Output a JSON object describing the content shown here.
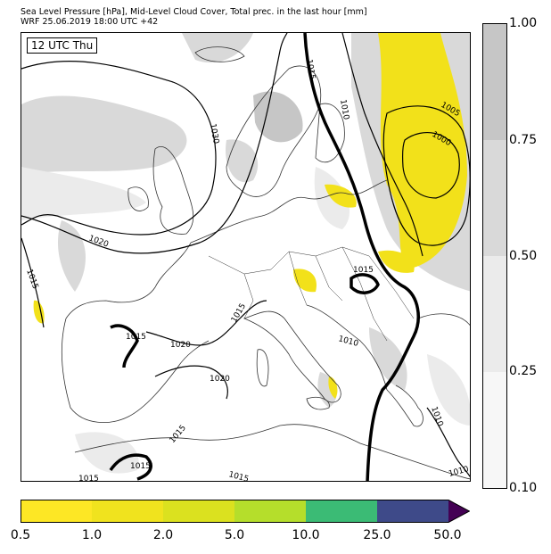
{
  "title": {
    "line1": "Sea Level Pressure [hPa], Mid-Level Cloud Cover, Total prec. in the last hour [mm]",
    "line2": "WRF 25.06.2019 18:00 UTC +42"
  },
  "time_badge": "12 UTC Thu",
  "colors": {
    "sea": "#ffffff",
    "coast": "#333333",
    "isobar": "#000000",
    "cloud_025": "#ebebeb",
    "cloud_050": "#d9d9d9",
    "cloud_075": "#c6c6c6",
    "precip_yellow": "#f2e11a"
  },
  "cloud_cover_legend": {
    "labels": [
      "1.00",
      "0.75",
      "0.50",
      "0.25",
      "0.10"
    ],
    "colors": [
      "#c6c6c6",
      "#d9d9d9",
      "#ebebeb",
      "#f7f7f7"
    ]
  },
  "precip_legend": {
    "labels": [
      "0.5",
      "1.0",
      "2.0",
      "5.0",
      "10.0",
      "25.0",
      "50.0"
    ],
    "colors": [
      "#fde725",
      "#f0e31e",
      "#dbe11f",
      "#b5de2b",
      "#3bbb75",
      "#2a9f87",
      "#3e4a89"
    ],
    "extend_color": "#440154"
  },
  "isobar_labels": [
    {
      "text": "1030"
    },
    {
      "text": "1020"
    },
    {
      "text": "1015"
    },
    {
      "text": "1015"
    },
    {
      "text": "1010"
    },
    {
      "text": "1005"
    },
    {
      "text": "1000"
    },
    {
      "text": "1015"
    },
    {
      "text": "1015"
    },
    {
      "text": "1020"
    },
    {
      "text": "1020"
    },
    {
      "text": "1015"
    },
    {
      "text": "1015"
    },
    {
      "text": "1015"
    },
    {
      "text": "1015"
    },
    {
      "text": "1010"
    },
    {
      "text": "1010"
    },
    {
      "text": "1010"
    },
    {
      "text": "1015"
    }
  ]
}
